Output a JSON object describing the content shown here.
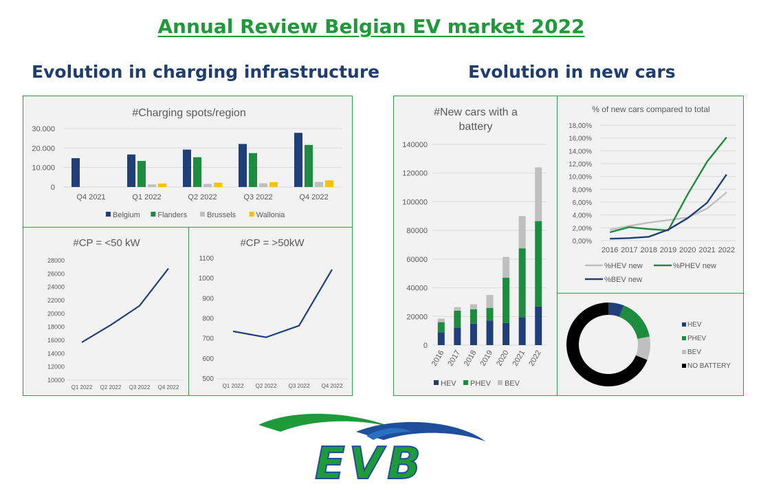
{
  "header": {
    "main_title": "Annual Review Belgian EV market 2022",
    "left_title": "Evolution in charging infrastructure",
    "right_title": "Evolution in new cars"
  },
  "colors": {
    "title_green": "#1e9a3a",
    "section_blue": "#1f3e6e",
    "navy": "#203f79",
    "green": "#1e8c3e",
    "gray": "#bfbfbf",
    "yellow": "#ffc000",
    "black": "#000000",
    "panel_bg": "#f2f2f2",
    "panel_border": "#2e9e4e"
  },
  "logo": {
    "text": "EVB"
  },
  "chart_data": [
    {
      "id": "charging-spots",
      "type": "bar",
      "title": "#Charging spots/region",
      "categories": [
        "Q4 2021",
        "Q1 2022",
        "Q2 2022",
        "Q3 2022",
        "Q4 2022"
      ],
      "series": [
        {
          "name": "Belgium",
          "color": "#203f79",
          "values": [
            14800,
            16700,
            19200,
            22100,
            27800
          ]
        },
        {
          "name": "Flanders",
          "color": "#1e8c3e",
          "values": [
            0,
            13400,
            15300,
            17400,
            21600
          ]
        },
        {
          "name": "Brussels",
          "color": "#bfbfbf",
          "values": [
            0,
            1300,
            1600,
            1900,
            2600
          ]
        },
        {
          "name": "Wallonia",
          "color": "#ffc000",
          "values": [
            0,
            1800,
            2200,
            2500,
            3400
          ]
        }
      ],
      "ylim": [
        0,
        30000
      ],
      "yticks": [
        "0",
        "10.000",
        "20.000",
        "30.000"
      ],
      "grid": true,
      "legend": "bottom"
    },
    {
      "id": "cp-under-50",
      "type": "line",
      "title": "#CP = <50 kW",
      "categories": [
        "Q1 2022",
        "Q2 2022",
        "Q3 2022",
        "Q4 2022"
      ],
      "series": [
        {
          "color": "#203f79",
          "values": [
            15700,
            18300,
            21200,
            26800
          ]
        }
      ],
      "ylim": [
        10000,
        28000
      ],
      "yticks": [
        "10000",
        "12000",
        "14000",
        "16000",
        "18000",
        "20000",
        "22000",
        "24000",
        "26000",
        "28000"
      ],
      "grid": false
    },
    {
      "id": "cp-over-50",
      "type": "line",
      "title": "#CP = >50kW",
      "categories": [
        "Q1 2022",
        "Q2 2022",
        "Q3 2022",
        "Q4 2022"
      ],
      "series": [
        {
          "color": "#203f79",
          "values": [
            737,
            707,
            765,
            1045
          ]
        }
      ],
      "ylim": [
        500,
        1100
      ],
      "yticks": [
        "500",
        "600",
        "700",
        "800",
        "900",
        "1000",
        "1100"
      ],
      "grid": false
    },
    {
      "id": "new-cars-battery",
      "type": "bar",
      "stacked": true,
      "title": "#New cars with a battery",
      "title_lines": [
        "#New cars with a",
        "battery"
      ],
      "categories": [
        "2016",
        "2017",
        "2018",
        "2019",
        "2020",
        "2021",
        "2022"
      ],
      "series": [
        {
          "name": "HEV",
          "color": "#203f79",
          "values": [
            9000,
            12000,
            15000,
            17000,
            15500,
            19500,
            27000
          ]
        },
        {
          "name": "PHEV",
          "color": "#1e8c3e",
          "values": [
            7000,
            12000,
            10000,
            9000,
            31500,
            48000,
            59500
          ]
        },
        {
          "name": "BEV",
          "color": "#bfbfbf",
          "values": [
            2500,
            2500,
            3500,
            9000,
            14500,
            22500,
            37500
          ]
        }
      ],
      "ylim": [
        0,
        140000
      ],
      "yticks": [
        "0",
        "20000",
        "40000",
        "60000",
        "80000",
        "100000",
        "120000",
        "140000"
      ],
      "grid": true,
      "legend": "bottom"
    },
    {
      "id": "pct-new-cars",
      "type": "line",
      "title": "% of new cars compared to total",
      "categories": [
        "2016",
        "2017",
        "2018",
        "2019",
        "2020",
        "2021",
        "2022"
      ],
      "series": [
        {
          "name": "%HEV new",
          "color": "#bfbfbf",
          "values": [
            1.7,
            2.3,
            2.8,
            3.2,
            3.6,
            5.0,
            7.5
          ]
        },
        {
          "name": "%PHEV new",
          "color": "#1e8c3e",
          "values": [
            1.3,
            2.1,
            1.8,
            1.6,
            7.2,
            12.3,
            16.1
          ]
        },
        {
          "name": "%BEV new",
          "color": "#203f79",
          "values": [
            0.3,
            0.4,
            0.6,
            1.7,
            3.5,
            5.9,
            10.3
          ]
        }
      ],
      "ylim": [
        0,
        18
      ],
      "yticks": [
        "0,00%",
        "2,00%",
        "4,00%",
        "6,00%",
        "8,00%",
        "10,00%",
        "12,00%",
        "14,00%",
        "16,00%",
        "18,00%"
      ],
      "grid": true,
      "legend": "bottom"
    },
    {
      "id": "battery-share",
      "type": "pie",
      "donut": true,
      "categories": [
        "HEV",
        "PHEV",
        "BEV",
        "NO BATTERY"
      ],
      "colors": [
        "#203f79",
        "#1e8c3e",
        "#bfbfbf",
        "#000000"
      ],
      "values": [
        6,
        16,
        9,
        69
      ],
      "legend": "right"
    }
  ]
}
